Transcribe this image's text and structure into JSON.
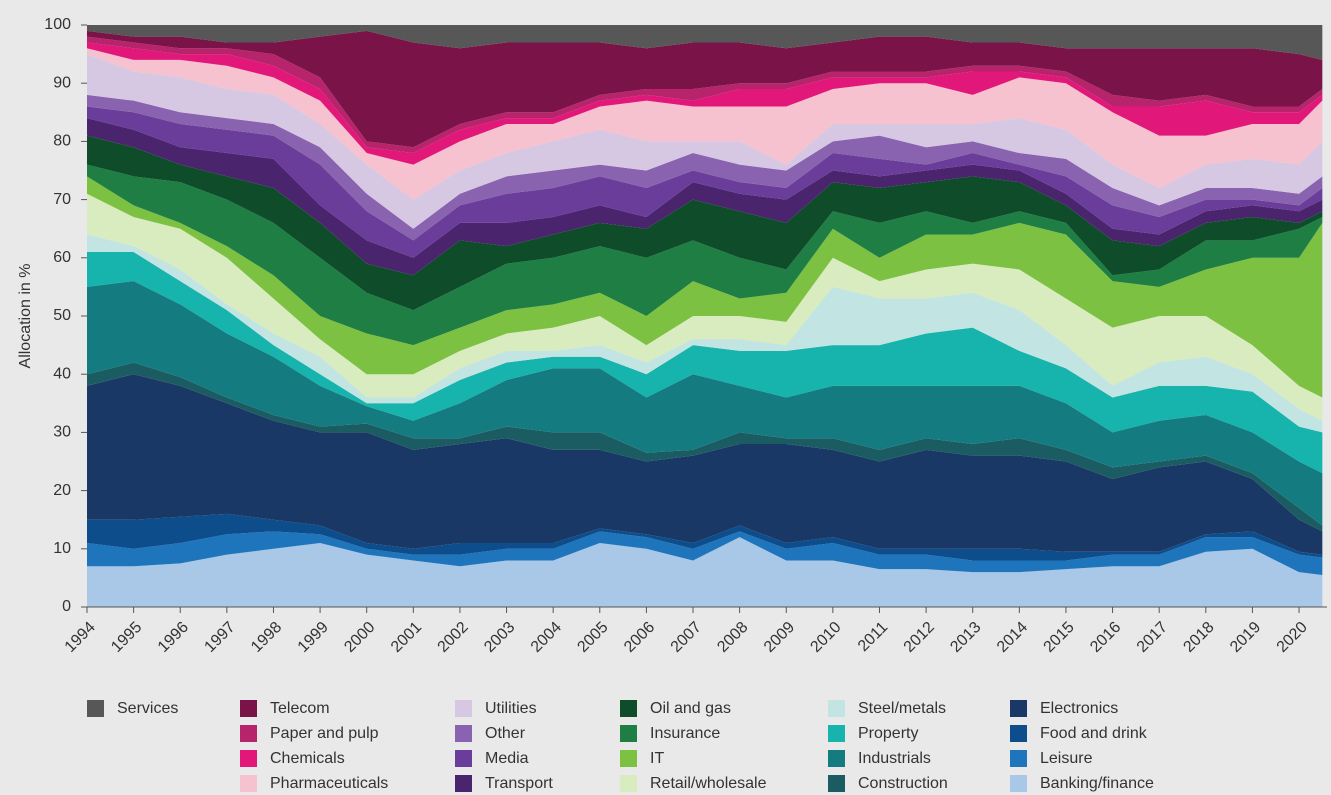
{
  "chart_data": {
    "type": "stacked_area",
    "y_label": "Allocation in %",
    "x": [
      1994,
      1995,
      1996,
      1997,
      1998,
      1999,
      2000,
      2001,
      2002,
      2003,
      2004,
      2005,
      2006,
      2007,
      2008,
      2009,
      2010,
      2011,
      2012,
      2013,
      2014,
      2015,
      2016,
      2017,
      2018,
      2019,
      2020,
      2020.5
    ],
    "xlim": [
      1994,
      2020.6
    ],
    "xticks": [
      1994,
      1995,
      1996,
      1997,
      1998,
      1999,
      2000,
      2001,
      2002,
      2003,
      2004,
      2005,
      2006,
      2007,
      2008,
      2009,
      2010,
      2011,
      2012,
      2013,
      2014,
      2015,
      2016,
      2017,
      2018,
      2019,
      2020
    ],
    "ylim": [
      0,
      100
    ],
    "yticks": [
      0,
      10,
      20,
      30,
      40,
      50,
      60,
      70,
      80,
      90,
      100
    ],
    "series": [
      {
        "name": "Services",
        "color": "#575757",
        "values": [
          1,
          2,
          2,
          3,
          3,
          2,
          1,
          3,
          4,
          3,
          3,
          3,
          4,
          3,
          3,
          4,
          3,
          2,
          2,
          3,
          3,
          4,
          4,
          4,
          4,
          4,
          5,
          6
        ]
      },
      {
        "name": "Telecom",
        "color": "#7a1448",
        "values": [
          1,
          1,
          2,
          1,
          2,
          7,
          19,
          18,
          13,
          12,
          12,
          9,
          7,
          8,
          7,
          6,
          5,
          6,
          6,
          4,
          4,
          4,
          8,
          9,
          8,
          10,
          9,
          5
        ]
      },
      {
        "name": "Paper and pulp",
        "color": "#b8246c",
        "values": [
          1,
          1,
          1,
          1,
          2,
          2,
          1,
          1,
          1,
          1,
          1,
          1,
          1,
          2,
          1,
          1,
          1,
          1,
          1,
          1,
          1,
          1,
          2,
          1,
          1,
          1,
          1,
          1
        ]
      },
      {
        "name": "Chemicals",
        "color": "#e2177a",
        "values": [
          1,
          2,
          1,
          2,
          2,
          2,
          1,
          2,
          2,
          1,
          1,
          1,
          1,
          1,
          3,
          3,
          2,
          1,
          1,
          4,
          1,
          1,
          1,
          5,
          6,
          2,
          2,
          1
        ]
      },
      {
        "name": "Pharmaceuticals",
        "color": "#f7c2cf",
        "values": [
          1,
          2,
          3,
          4,
          3,
          4,
          2,
          6,
          5,
          5,
          3,
          4,
          7,
          6,
          6,
          10,
          6,
          7,
          7,
          5,
          7,
          8,
          9,
          9,
          5,
          6,
          7,
          7
        ]
      },
      {
        "name": "Utilities",
        "color": "#d6c8e3",
        "values": [
          7,
          5,
          6,
          5,
          5,
          4,
          5,
          5,
          4,
          4,
          5,
          6,
          5,
          2,
          4,
          1,
          3,
          2,
          4,
          3,
          6,
          5,
          4,
          3,
          4,
          5,
          5,
          6
        ]
      },
      {
        "name": "Other",
        "color": "#8a63b0",
        "values": [
          2,
          2,
          2,
          2,
          2,
          3,
          3,
          2,
          2,
          3,
          3,
          2,
          3,
          3,
          3,
          3,
          2,
          4,
          3,
          2,
          2,
          3,
          3,
          2,
          2,
          2,
          2,
          2
        ]
      },
      {
        "name": "Media",
        "color": "#6a3d9a",
        "values": [
          2,
          3,
          4,
          4,
          4,
          7,
          5,
          3,
          3,
          5,
          5,
          5,
          5,
          2,
          2,
          2,
          3,
          3,
          1,
          2,
          1,
          3,
          4,
          3,
          2,
          1,
          1,
          2
        ]
      },
      {
        "name": "Transport",
        "color": "#4a256e",
        "values": [
          3,
          3,
          3,
          4,
          5,
          3,
          4,
          3,
          3,
          4,
          3,
          3,
          2,
          3,
          3,
          4,
          2,
          2,
          2,
          2,
          2,
          2,
          2,
          2,
          2,
          2,
          2,
          2
        ]
      },
      {
        "name": "Oil and gas",
        "color": "#0f4d2a",
        "values": [
          5,
          5,
          3,
          4,
          6,
          6,
          5,
          6,
          8,
          3,
          4,
          4,
          5,
          7,
          8,
          8,
          5,
          6,
          5,
          8,
          5,
          3,
          6,
          4,
          3,
          4,
          1,
          1
        ]
      },
      {
        "name": "Insurance",
        "color": "#1e7e44",
        "values": [
          2,
          5,
          7,
          8,
          9,
          10,
          7,
          6,
          7,
          8,
          8,
          8,
          10,
          7,
          7,
          4,
          3,
          6,
          4,
          2,
          2,
          2,
          1,
          3,
          5,
          3,
          5,
          1
        ]
      },
      {
        "name": "IT",
        "color": "#7cc142",
        "values": [
          3,
          2,
          1,
          2,
          4,
          4,
          7,
          5,
          4,
          4,
          4,
          4,
          5,
          6,
          3,
          5,
          5,
          4,
          6,
          5,
          8,
          11,
          8,
          5,
          8,
          15,
          22,
          30
        ]
      },
      {
        "name": "Retail/wholesale",
        "color": "#d9ecc0",
        "values": [
          7,
          5,
          7,
          8,
          6,
          3,
          4,
          4,
          3,
          3,
          4,
          5,
          3,
          4,
          4,
          4,
          5,
          3,
          5,
          5,
          7,
          8,
          10,
          8,
          7,
          5,
          4,
          4
        ]
      },
      {
        "name": "Steel/metals",
        "color": "#c2e4e3",
        "values": [
          3,
          1,
          2,
          1,
          2,
          3,
          1,
          1,
          2,
          2,
          1,
          2,
          2,
          1,
          2,
          1,
          10,
          8,
          6,
          6,
          7,
          4,
          2,
          4,
          5,
          3,
          3,
          2
        ]
      },
      {
        "name": "Property",
        "color": "#17b3ad",
        "values": [
          6,
          5,
          4,
          4,
          2,
          2,
          0.5,
          3,
          4,
          3,
          2,
          2,
          4,
          5,
          6,
          8,
          7,
          7,
          9,
          10,
          6,
          6,
          6,
          6,
          5,
          7,
          6,
          7
        ]
      },
      {
        "name": "Industrials",
        "color": "#147c80",
        "values": [
          15,
          14,
          12.5,
          11,
          10,
          7,
          3,
          3,
          6,
          8,
          11,
          11,
          9.5,
          13,
          8,
          7,
          9,
          11,
          9,
          10,
          9,
          8,
          6,
          7,
          7,
          7,
          8,
          9
        ]
      },
      {
        "name": "Construction",
        "color": "#1b5c62",
        "values": [
          2,
          2,
          1.5,
          1,
          1,
          1,
          1.5,
          2,
          1,
          2,
          3,
          3,
          1.5,
          1,
          2,
          1,
          2,
          2,
          2,
          2,
          3,
          2,
          2,
          1,
          1,
          1,
          2,
          1
        ]
      },
      {
        "name": "Electronics",
        "color": "#1a3866",
        "values": [
          23,
          25,
          22.5,
          19,
          17,
          16,
          19,
          17,
          17,
          18,
          16,
          13.5,
          12.5,
          15,
          14,
          17,
          15,
          15,
          17,
          16,
          16,
          15.5,
          12.5,
          14.5,
          12.5,
          9,
          5.5,
          4
        ]
      },
      {
        "name": "Food and drink",
        "color": "#0e4d8c",
        "values": [
          4,
          5,
          4.5,
          3.5,
          2,
          1.5,
          1,
          1,
          2,
          1,
          1,
          0.5,
          0.5,
          1,
          1,
          1,
          1,
          1,
          1,
          2,
          2,
          1.5,
          0.5,
          0.5,
          0.5,
          1,
          0.5,
          0.5
        ]
      },
      {
        "name": "Leisure",
        "color": "#1e75bb",
        "values": [
          4,
          3,
          3.5,
          3.5,
          3,
          1.5,
          1,
          1,
          2,
          2,
          2,
          2,
          2,
          2,
          1,
          2,
          3,
          2.5,
          2.5,
          2,
          2,
          1.5,
          2,
          2,
          2.5,
          2,
          3,
          3
        ]
      },
      {
        "name": "Banking/finance",
        "color": "#a9c7e7",
        "values": [
          7,
          7,
          7.5,
          9,
          10,
          11,
          9,
          8,
          7,
          8,
          8,
          11,
          10,
          8,
          12,
          8,
          8,
          6.5,
          6.5,
          6,
          6,
          6.5,
          7,
          7,
          9.5,
          10,
          6,
          5.5
        ]
      }
    ]
  }
}
